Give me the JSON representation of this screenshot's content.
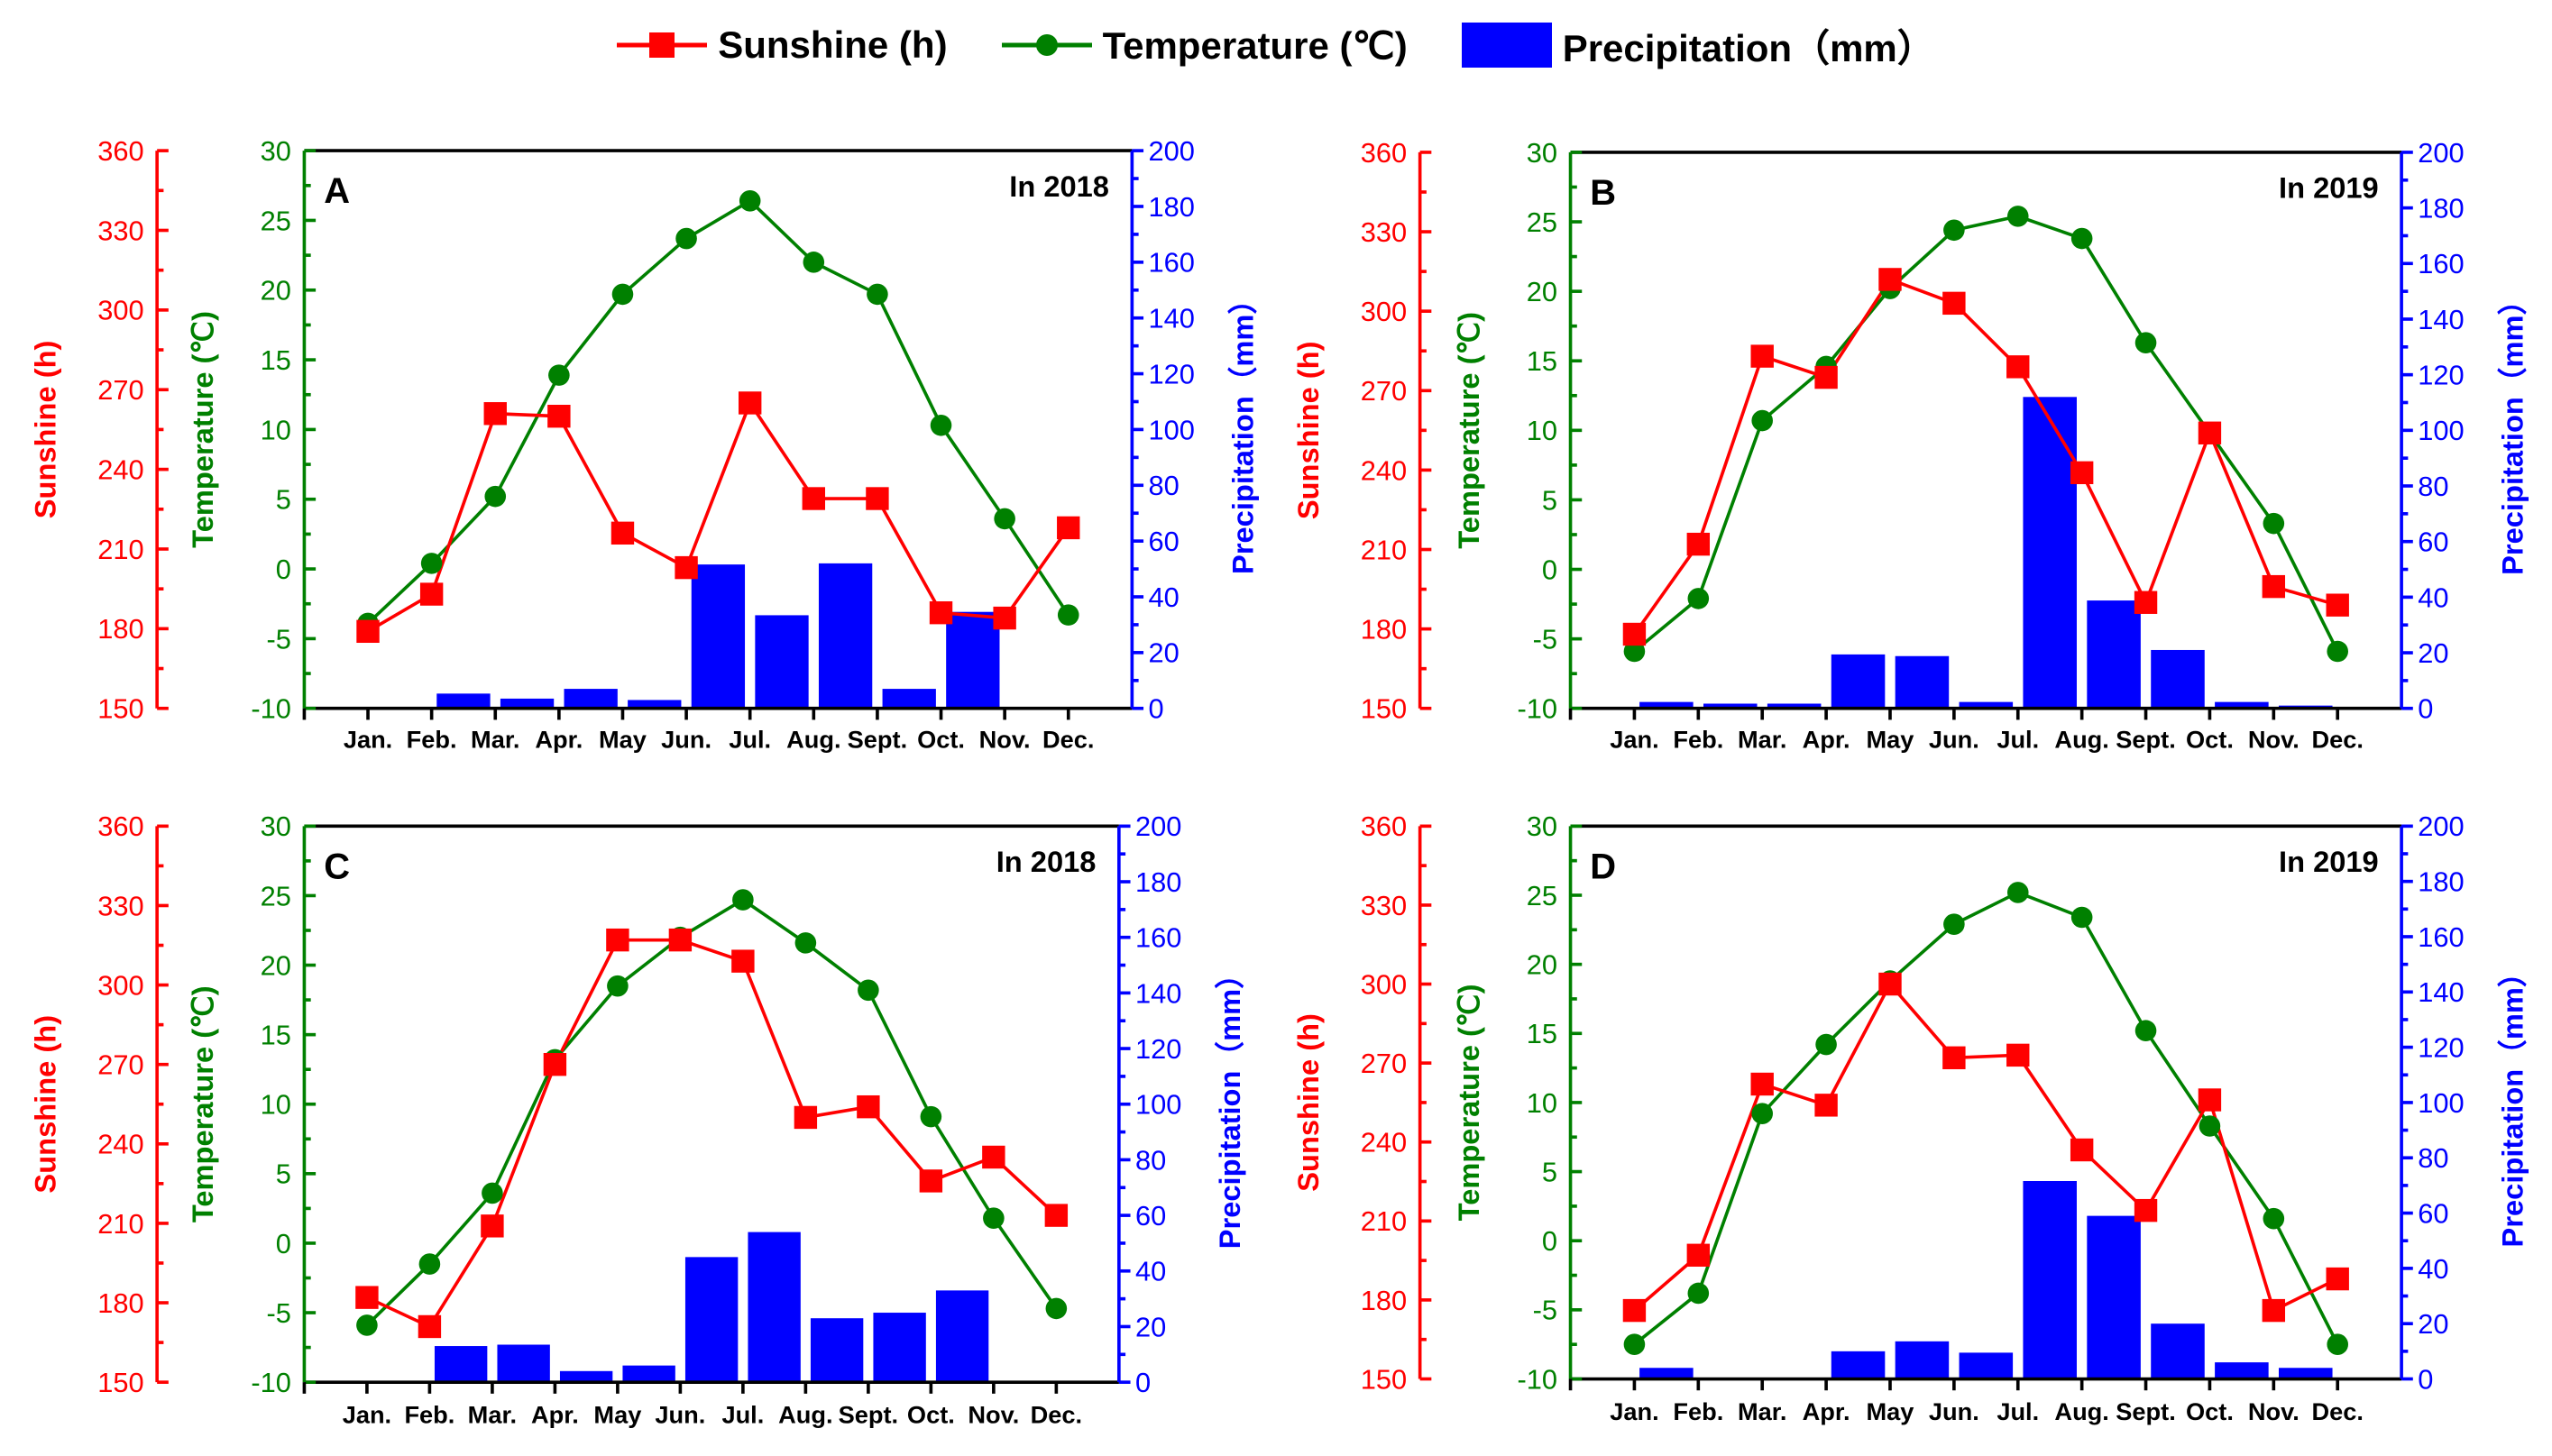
{
  "legend": {
    "sunshine": "Sunshine (h)",
    "temperature": "Temperature (℃)",
    "precipitation": "Precipitation（mm）"
  },
  "colors": {
    "sunshine": "#ff0000",
    "temperature": "#008000",
    "precipitation": "#0000ff"
  },
  "chart_data": [
    {
      "panel": "A",
      "annotation": "In 2018",
      "type": "bar+line",
      "categories": [
        "Jan.",
        "Feb.",
        "Mar.",
        "Apr.",
        "May",
        "Jun.",
        "Jul.",
        "Aug.",
        "Sept.",
        "Oct.",
        "Nov.",
        "Dec."
      ],
      "axes": {
        "sunshine": {
          "label": "Sunshine (h)",
          "range": [
            150,
            360
          ],
          "step": 30
        },
        "temperature": {
          "label": "Temperature (℃)",
          "range": [
            -10,
            30
          ],
          "step": 5
        },
        "precipitation": {
          "label": "Precipitation（mm）",
          "range": [
            0,
            200
          ],
          "step": 20
        }
      },
      "series": [
        {
          "name": "Sunshine (h)",
          "axis": "sunshine",
          "values": [
            179,
            193,
            261,
            260,
            216,
            203,
            265,
            229,
            229,
            186,
            184,
            218
          ]
        },
        {
          "name": "Temperature (℃)",
          "axis": "temperature",
          "values": [
            -3.9,
            0.4,
            5.2,
            13.9,
            19.7,
            23.7,
            26.4,
            22.0,
            19.7,
            10.3,
            3.6,
            -3.3
          ]
        },
        {
          "name": "Precipitation（mm）",
          "axis": "precipitation",
          "values": [
            0,
            5.3,
            3.5,
            7,
            3,
            51.6,
            33.4,
            52,
            7,
            34.6,
            0,
            0
          ]
        }
      ]
    },
    {
      "panel": "B",
      "annotation": "In 2019",
      "type": "bar+line",
      "categories": [
        "Jan.",
        "Feb.",
        "Mar.",
        "Apr.",
        "May",
        "Jun.",
        "Jul.",
        "Aug.",
        "Sept.",
        "Oct.",
        "Nov.",
        "Dec."
      ],
      "axes": {
        "sunshine": {
          "label": "Sunshine (h)",
          "range": [
            150,
            360
          ],
          "step": 30
        },
        "temperature": {
          "label": "Temperature (℃)",
          "range": [
            -10,
            30
          ],
          "step": 5
        },
        "precipitation": {
          "label": "Precipitation（mm）",
          "range": [
            0,
            200
          ],
          "step": 20
        }
      },
      "series": [
        {
          "name": "Sunshine (h)",
          "axis": "sunshine",
          "values": [
            178,
            212,
            283,
            275,
            312,
            303,
            279,
            239,
            190,
            254,
            196,
            189
          ]
        },
        {
          "name": "Temperature (℃)",
          "axis": "temperature",
          "values": [
            -5.9,
            -2.1,
            10.7,
            14.6,
            20.2,
            24.4,
            25.4,
            23.8,
            16.3,
            9.8,
            3.3,
            -5.9
          ]
        },
        {
          "name": "Precipitation（mm）",
          "axis": "precipitation",
          "values": [
            2.3,
            1.7,
            1.7,
            19.4,
            18.8,
            2.3,
            112,
            38.8,
            21,
            2.3,
            1,
            0
          ]
        }
      ]
    },
    {
      "panel": "C",
      "annotation": "In 2018",
      "type": "bar+line",
      "categories": [
        "Jan.",
        "Feb.",
        "Mar.",
        "Apr.",
        "May",
        "Jun.",
        "Jul.",
        "Aug.",
        "Sept.",
        "Oct.",
        "Nov.",
        "Dec."
      ],
      "axes": {
        "sunshine": {
          "label": "Sunshine (h)",
          "range": [
            150,
            360
          ],
          "step": 30
        },
        "temperature": {
          "label": "Temperature (℃)",
          "range": [
            -10,
            30
          ],
          "step": 5
        },
        "precipitation": {
          "label": "Precipitation（mm）",
          "range": [
            0,
            200
          ],
          "step": 20
        }
      },
      "series": [
        {
          "name": "Sunshine (h)",
          "axis": "sunshine",
          "values": [
            182,
            171,
            209,
            270,
            317,
            317,
            309,
            250,
            254,
            226,
            235,
            213
          ]
        },
        {
          "name": "Temperature (℃)",
          "axis": "temperature",
          "values": [
            -5.9,
            -1.5,
            3.6,
            13.2,
            18.5,
            22.0,
            24.7,
            21.6,
            18.2,
            9.1,
            1.8,
            -4.7
          ]
        },
        {
          "name": "Precipitation（mm）",
          "axis": "precipitation",
          "values": [
            0,
            13,
            13.5,
            4,
            6,
            45,
            54,
            23,
            25,
            33,
            0,
            0
          ]
        }
      ]
    },
    {
      "panel": "D",
      "annotation": "In 2019",
      "type": "bar+line",
      "categories": [
        "Jan.",
        "Feb.",
        "Mar.",
        "Apr.",
        "May",
        "Jun.",
        "Jul.",
        "Aug.",
        "Sept.",
        "Oct.",
        "Nov.",
        "Dec."
      ],
      "axes": {
        "sunshine": {
          "label": "Sunshine (h)",
          "range": [
            150,
            360
          ],
          "step": 30
        },
        "temperature": {
          "label": "Temperature (℃)",
          "range": [
            -10,
            30
          ],
          "step": 5
        },
        "precipitation": {
          "label": "Precipitation（mm）",
          "range": [
            0,
            200
          ],
          "step": 20
        }
      },
      "series": [
        {
          "name": "Sunshine (h)",
          "axis": "sunshine",
          "values": [
            176,
            197,
            262,
            254,
            300,
            272,
            273,
            237,
            214,
            256,
            176,
            188
          ]
        },
        {
          "name": "Temperature (℃)",
          "axis": "temperature",
          "values": [
            -7.5,
            -3.8,
            9.2,
            14.2,
            18.8,
            22.9,
            25.2,
            23.4,
            15.2,
            8.3,
            1.6,
            -7.5
          ]
        },
        {
          "name": "Precipitation（mm）",
          "axis": "precipitation",
          "values": [
            4,
            0,
            0,
            10,
            13.6,
            9.5,
            71.6,
            59,
            20,
            6,
            4,
            0
          ]
        }
      ]
    }
  ]
}
